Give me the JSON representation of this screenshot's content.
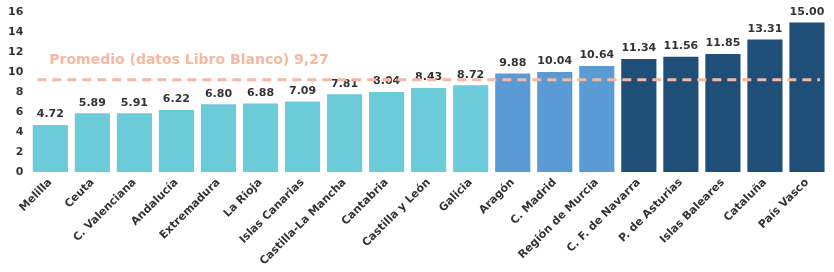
{
  "chart_data": {
    "type": "bar",
    "categories": [
      "Melilla",
      "Ceuta",
      "C. Valenciana",
      "Andalucía",
      "Extremadura",
      "La Rioja",
      "Islas Canarias",
      "Castilla-La Mancha",
      "Cantabria",
      "Castilla y León",
      "Galicia",
      "Aragón",
      "C. Madrid",
      "Región de Murcia",
      "C. F. de Navarra",
      "P. de Asturias",
      "Islas Baleares",
      "Cataluña",
      "País Vasco"
    ],
    "values": [
      4.72,
      5.89,
      5.91,
      6.22,
      6.8,
      6.88,
      7.09,
      7.81,
      8.04,
      8.43,
      8.72,
      9.88,
      10.04,
      10.64,
      11.34,
      11.56,
      11.85,
      13.31,
      15
    ],
    "value_labels": [
      "4.72",
      "5.89",
      "5.91",
      "6.22",
      "6.80",
      "6.88",
      "7.09",
      "7.81",
      "8.04",
      "8.43",
      "8.72",
      "9.88",
      "10.04",
      "10.64",
      "11.34",
      "11.56",
      "11.85",
      "13.31",
      "15.00"
    ],
    "colors": [
      "#6ccbd9",
      "#6ccbd9",
      "#6ccbd9",
      "#6ccbd9",
      "#6ccbd9",
      "#6ccbd9",
      "#6ccbd9",
      "#6ccbd9",
      "#6ccbd9",
      "#6ccbd9",
      "#6ccbd9",
      "#5b9bd5",
      "#5b9bd5",
      "#5b9bd5",
      "#1f4e79",
      "#1f4e79",
      "#1f4e79",
      "#1f4e79",
      "#1f4e79"
    ],
    "data_labels": true,
    "grid": false,
    "ylim": [
      0,
      16
    ],
    "yticks": [
      0,
      2,
      4,
      6,
      8,
      10,
      12,
      14,
      16
    ],
    "annotations": [
      {
        "label": "Promedio (datos Libro Blanco) 9,27",
        "y": 9.27,
        "color": "#f4b9a0",
        "line_style": "dashed"
      }
    ]
  }
}
